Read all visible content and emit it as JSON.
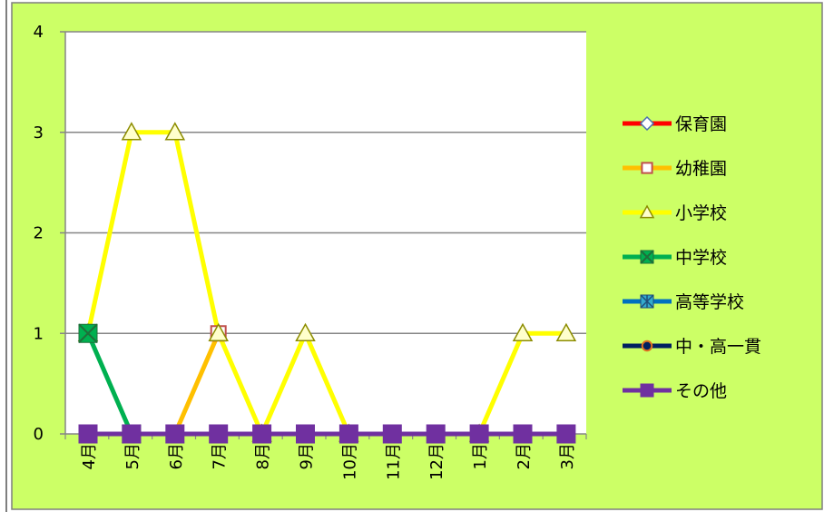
{
  "chart_data": {
    "type": "line",
    "categories": [
      "4月",
      "5月",
      "6月",
      "7月",
      "8月",
      "9月",
      "10月",
      "11月",
      "12月",
      "1月",
      "2月",
      "3月"
    ],
    "ylim": [
      0,
      4
    ],
    "yticks": [
      0,
      1,
      2,
      3,
      4
    ],
    "grid": true,
    "legend_placement": "right",
    "plot_background": "#ffffff",
    "chart_background": "#ccff66",
    "series": [
      {
        "name": "保育園",
        "color": "#ff0000",
        "marker": "diamond",
        "marker_fill": "#ffffff",
        "marker_stroke": "#4a6fb0",
        "values": [
          null,
          null,
          null,
          null,
          null,
          null,
          null,
          null,
          null,
          null,
          null,
          null
        ]
      },
      {
        "name": "幼稚園",
        "color": "#ffc000",
        "marker": "square-open",
        "marker_fill": "#ffffff",
        "marker_stroke": "#c0504d",
        "values": [
          null,
          null,
          0,
          1,
          null,
          null,
          null,
          null,
          null,
          null,
          null,
          null
        ]
      },
      {
        "name": "小学校",
        "color": "#ffff00",
        "marker": "triangle",
        "marker_fill": "#ffffcc",
        "marker_stroke": "#8c8c00",
        "values": [
          1,
          3,
          3,
          1,
          0,
          1,
          0,
          null,
          null,
          0,
          1,
          1
        ]
      },
      {
        "name": "中学校",
        "color": "#00b050",
        "marker": "square-x",
        "marker_fill": "#00b050",
        "marker_stroke": "#1f6f3a",
        "values": [
          1,
          0,
          null,
          null,
          null,
          null,
          null,
          null,
          null,
          null,
          null,
          null
        ]
      },
      {
        "name": "高等学校",
        "color": "#0070c0",
        "marker": "square-star",
        "marker_fill": "#33aacc",
        "marker_stroke": "#1f4e79",
        "values": [
          null,
          null,
          null,
          null,
          null,
          null,
          null,
          null,
          null,
          null,
          null,
          null
        ]
      },
      {
        "name": "中・高一貫",
        "color": "#002060",
        "marker": "circle",
        "marker_fill": "#002060",
        "marker_stroke": "#e07020",
        "values": [
          null,
          null,
          null,
          null,
          null,
          null,
          null,
          null,
          null,
          null,
          null,
          null
        ]
      },
      {
        "name": "その他",
        "color": "#7030a0",
        "marker": "square",
        "marker_fill": "#7030a0",
        "marker_stroke": "#7030a0",
        "values": [
          0,
          0,
          0,
          0,
          0,
          0,
          0,
          0,
          0,
          0,
          0,
          0
        ]
      }
    ]
  }
}
